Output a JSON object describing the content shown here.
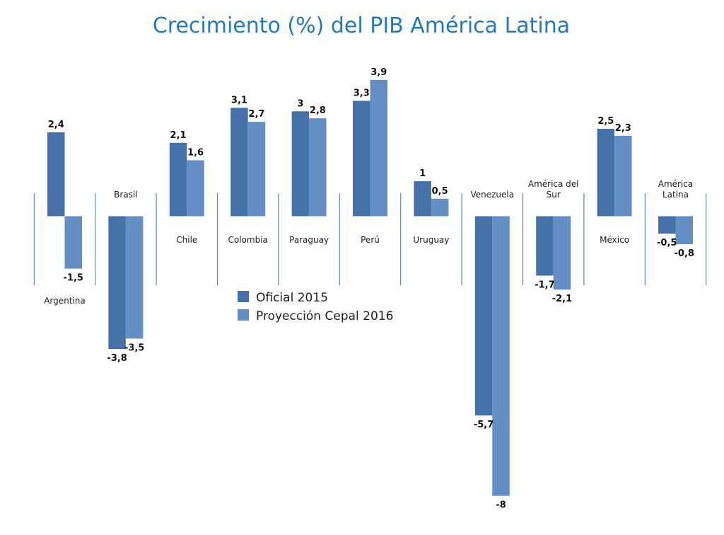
{
  "chart_data": {
    "type": "bar",
    "title": "Crecimiento (%) del PIB América Latina",
    "categories": [
      [
        "Argentina"
      ],
      [
        "Brasil"
      ],
      [
        "Chile"
      ],
      [
        "Colombia"
      ],
      [
        "Paraguay"
      ],
      [
        "Perú"
      ],
      [
        "Uruguay"
      ],
      [
        "Venezuela"
      ],
      [
        "América del",
        "Sur"
      ],
      [
        "México"
      ],
      [
        "América",
        "Latina"
      ]
    ],
    "series": [
      {
        "name": "Oficial 2015",
        "color": "#4472a8",
        "values": [
          2.4,
          -3.8,
          2.1,
          3.1,
          3,
          3.3,
          1,
          -5.7,
          -1.7,
          2.5,
          -0.5
        ],
        "labels": [
          "2,4",
          "-3,8",
          "2,1",
          "3,1",
          "3",
          "3,3",
          "1",
          "-5,7",
          "-1,7",
          "2,5",
          "-0,5"
        ]
      },
      {
        "name": "Proyección Cepal 2016",
        "color": "#648fc4",
        "values": [
          -1.5,
          -3.5,
          1.6,
          2.7,
          2.8,
          3.9,
          0.5,
          -8,
          -2.1,
          2.3,
          -0.8
        ],
        "labels": [
          "-1,5",
          "-3,5",
          "1,6",
          "2,7",
          "2,8",
          "3,9",
          "0,5",
          "-8",
          "-2,1",
          "2,3",
          "-0,8"
        ]
      }
    ],
    "legend": "center",
    "grid": false
  }
}
